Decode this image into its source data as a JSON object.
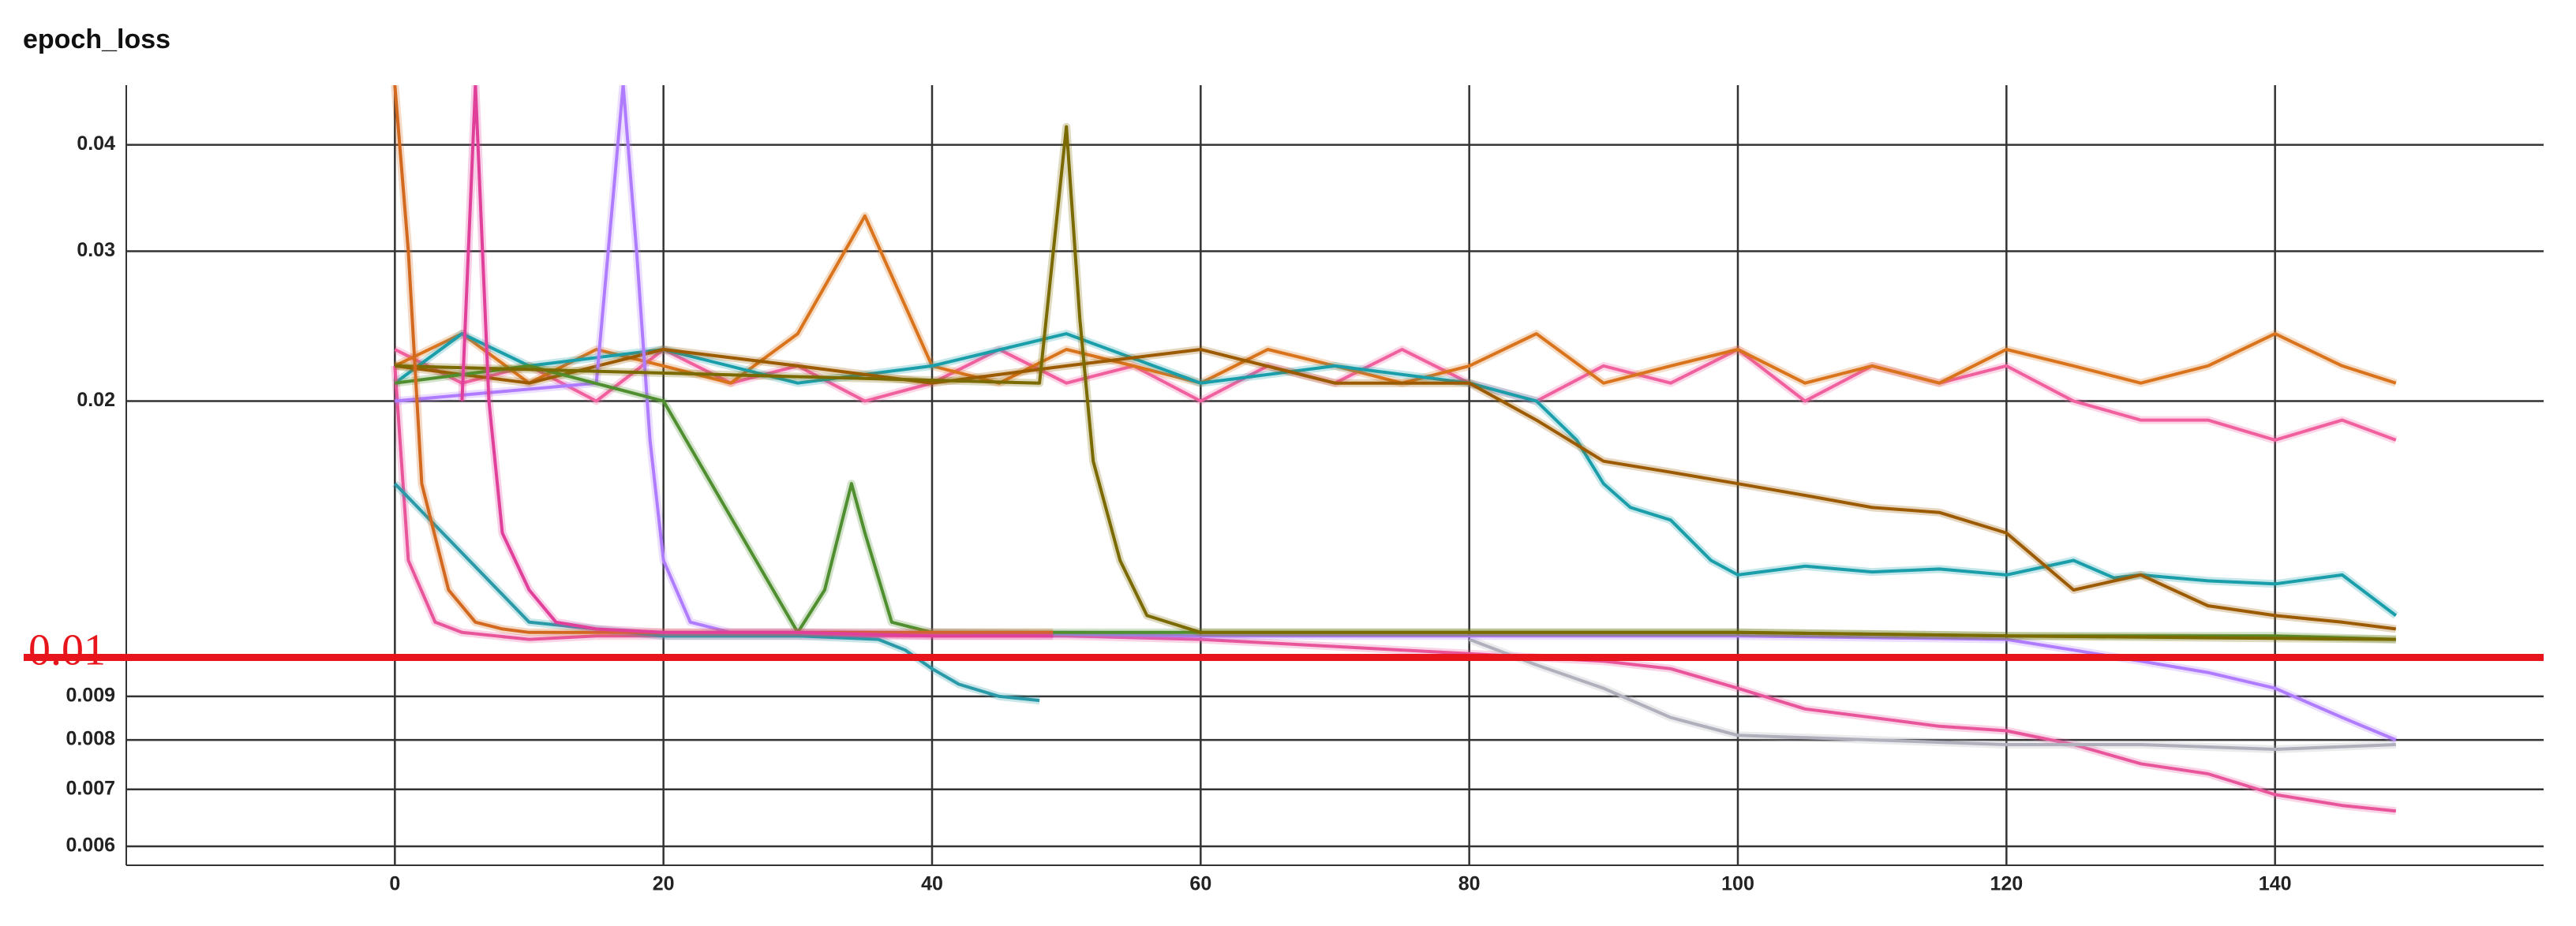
{
  "chart_data": {
    "type": "line",
    "title": "epoch_loss",
    "log_scale_y": true,
    "grid": true,
    "xlim": [
      -20,
      160
    ],
    "ylim": [
      0.0057,
      0.047
    ],
    "xticks": [
      0,
      20,
      40,
      60,
      80,
      100,
      120,
      140
    ],
    "yticks": [
      0.006,
      0.007,
      0.008,
      0.009,
      0.02,
      0.03,
      0.04
    ],
    "reference_line": {
      "value": 0.01,
      "label": "0.01",
      "color": "#e8141b"
    },
    "series": [
      {
        "color": "#f0609e",
        "x": [
          0,
          5,
          10,
          15,
          20,
          25,
          30,
          35,
          40,
          45,
          50,
          55,
          60,
          65,
          70,
          75,
          80,
          85,
          90,
          95,
          100,
          105,
          110,
          115,
          120,
          125,
          130,
          135,
          140,
          145,
          149
        ],
        "values": [
          0.023,
          0.021,
          0.022,
          0.02,
          0.023,
          0.021,
          0.022,
          0.02,
          0.021,
          0.023,
          0.021,
          0.022,
          0.02,
          0.022,
          0.021,
          0.023,
          0.021,
          0.02,
          0.022,
          0.021,
          0.023,
          0.02,
          0.022,
          0.021,
          0.022,
          0.02,
          0.019,
          0.019,
          0.018,
          0.019,
          0.018
        ]
      },
      {
        "color": "#d9731c",
        "x": [
          0,
          5,
          10,
          15,
          20,
          25,
          30,
          35,
          40,
          45,
          50,
          55,
          60,
          65,
          70,
          75,
          80,
          85,
          90,
          95,
          100,
          105,
          110,
          115,
          120,
          125,
          130,
          135,
          140,
          145,
          149
        ],
        "values": [
          0.022,
          0.024,
          0.021,
          0.023,
          0.022,
          0.021,
          0.024,
          0.033,
          0.022,
          0.021,
          0.023,
          0.022,
          0.021,
          0.023,
          0.022,
          0.021,
          0.022,
          0.024,
          0.021,
          0.022,
          0.023,
          0.021,
          0.022,
          0.021,
          0.023,
          0.022,
          0.021,
          0.022,
          0.024,
          0.022,
          0.021
        ]
      },
      {
        "color": "#1a9eaa",
        "x": [
          0,
          5,
          10,
          20,
          30,
          40,
          50,
          60,
          70,
          80,
          85,
          88,
          90,
          92,
          95,
          98,
          100,
          105,
          110,
          115,
          120,
          125,
          128,
          130,
          135,
          140,
          145,
          149
        ],
        "values": [
          0.021,
          0.024,
          0.022,
          0.023,
          0.021,
          0.022,
          0.024,
          0.021,
          0.022,
          0.021,
          0.02,
          0.018,
          0.016,
          0.015,
          0.0145,
          0.013,
          0.0125,
          0.0128,
          0.0126,
          0.0127,
          0.0125,
          0.013,
          0.0124,
          0.0125,
          0.0123,
          0.0122,
          0.0125,
          0.0112
        ]
      },
      {
        "color": "#9c5b00",
        "x": [
          0,
          10,
          20,
          30,
          40,
          50,
          60,
          70,
          80,
          85,
          90,
          95,
          100,
          105,
          110,
          115,
          120,
          125,
          130,
          135,
          140,
          145,
          149
        ],
        "values": [
          0.022,
          0.021,
          0.023,
          0.022,
          0.021,
          0.022,
          0.023,
          0.021,
          0.021,
          0.019,
          0.017,
          0.0165,
          0.016,
          0.0155,
          0.015,
          0.0148,
          0.014,
          0.012,
          0.0125,
          0.0115,
          0.0112,
          0.011,
          0.0108
        ]
      },
      {
        "color": "#e8559b",
        "x": [
          0,
          1,
          3,
          5,
          10,
          15,
          20,
          30,
          40,
          50,
          60,
          70,
          80,
          90,
          95,
          100,
          105,
          110,
          115,
          120,
          125,
          130,
          135,
          140,
          145,
          149
        ],
        "values": [
          0.022,
          0.013,
          0.011,
          0.0107,
          0.0105,
          0.0106,
          0.0106,
          0.0106,
          0.0106,
          0.0106,
          0.0105,
          0.0103,
          0.0101,
          0.0099,
          0.0097,
          0.0092,
          0.0087,
          0.0085,
          0.0083,
          0.0082,
          0.0079,
          0.0075,
          0.0073,
          0.0069,
          0.0067,
          0.0066
        ]
      },
      {
        "color": "#b0b0bc",
        "x": [
          80,
          85,
          90,
          95,
          100,
          110,
          120,
          130,
          140,
          149
        ],
        "values": [
          0.0105,
          0.0098,
          0.0092,
          0.0085,
          0.0081,
          0.008,
          0.0079,
          0.0079,
          0.0078,
          0.0079
        ]
      },
      {
        "color": "#b07cff",
        "x": [
          0,
          15,
          17,
          18,
          19,
          20,
          22,
          25,
          40,
          60,
          80,
          100,
          120,
          125,
          130,
          135,
          140,
          145,
          149
        ],
        "values": [
          0.02,
          0.021,
          0.047,
          0.03,
          0.018,
          0.013,
          0.011,
          0.0107,
          0.0107,
          0.0106,
          0.0106,
          0.0106,
          0.0105,
          0.0102,
          0.0099,
          0.0096,
          0.0092,
          0.0085,
          0.008
        ]
      },
      {
        "color": "#4f8f2f",
        "x": [
          0,
          10,
          20,
          30,
          32,
          34,
          35,
          37,
          40,
          50,
          60,
          80,
          100,
          120,
          130,
          140,
          149
        ],
        "values": [
          0.021,
          0.022,
          0.02,
          0.0107,
          0.012,
          0.016,
          0.014,
          0.011,
          0.0107,
          0.0107,
          0.0107,
          0.0107,
          0.0107,
          0.0106,
          0.0106,
          0.0106,
          0.0105
        ]
      },
      {
        "color": "#7a6a00",
        "x": [
          0,
          48,
          50,
          51,
          52,
          54,
          56,
          60,
          80,
          100,
          120,
          149
        ],
        "values": [
          0.022,
          0.021,
          0.042,
          0.025,
          0.017,
          0.013,
          0.0112,
          0.0107,
          0.0107,
          0.0107,
          0.0106,
          0.0105
        ]
      },
      {
        "color": "#2a9aa8",
        "x": [
          0,
          10,
          20,
          30,
          36,
          38,
          40,
          42,
          45,
          48
        ],
        "values": [
          0.016,
          0.011,
          0.0106,
          0.0106,
          0.0105,
          0.0102,
          0.0097,
          0.0093,
          0.009,
          0.0089
        ]
      },
      {
        "color": "#d2691e",
        "x": [
          0,
          1,
          2,
          4,
          6,
          8,
          10,
          20,
          30,
          49
        ],
        "values": [
          0.047,
          0.03,
          0.016,
          0.012,
          0.011,
          0.0108,
          0.0107,
          0.0107,
          0.0107,
          0.0107
        ]
      },
      {
        "color": "#e0409a",
        "x": [
          5,
          6,
          7,
          8,
          10,
          12,
          15,
          20,
          30,
          40,
          49
        ],
        "values": [
          0.02,
          0.047,
          0.02,
          0.014,
          0.012,
          0.011,
          0.0108,
          0.0107,
          0.0107,
          0.0106,
          0.0106
        ]
      }
    ]
  }
}
